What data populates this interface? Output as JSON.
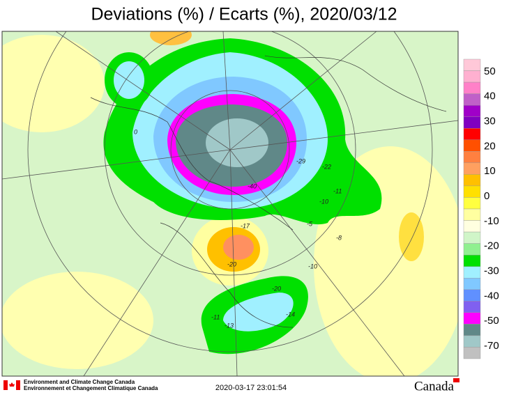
{
  "title": "Deviations (%) / Ecarts (%), 2020/03/12",
  "legend": {
    "labels": [
      50,
      40,
      30,
      20,
      10,
      0,
      -10,
      -20,
      -30,
      -40,
      -50,
      -70
    ],
    "colors": [
      "#ffc8d8",
      "#ffb0d0",
      "#ff80c8",
      "#c060c8",
      "#a000c8",
      "#8000c0",
      "#ff0000",
      "#ff5000",
      "#ff8040",
      "#ffa060",
      "#ffc000",
      "#ffe000",
      "#ffff40",
      "#ffffa0",
      "#ffffe0",
      "#d0f5c8",
      "#90f090",
      "#00e000",
      "#a0f0ff",
      "#80c8ff",
      "#6090ff",
      "#8060f0",
      "#ff00ff",
      "#608888",
      "#a0c8c8",
      "#c0c0c0"
    ]
  },
  "contour_labels": [
    -22,
    -10,
    -11,
    -5,
    -8,
    -20,
    -17,
    -10,
    -14,
    -13,
    -11,
    -20,
    -40,
    -29,
    0
  ],
  "footer": {
    "agency_en": "Environment and Climate Change Canada",
    "agency_fr": "Environnement et Changement Climatique Canada",
    "timestamp": "2020-03-17 23:01:54",
    "wordmark": "Canada"
  }
}
